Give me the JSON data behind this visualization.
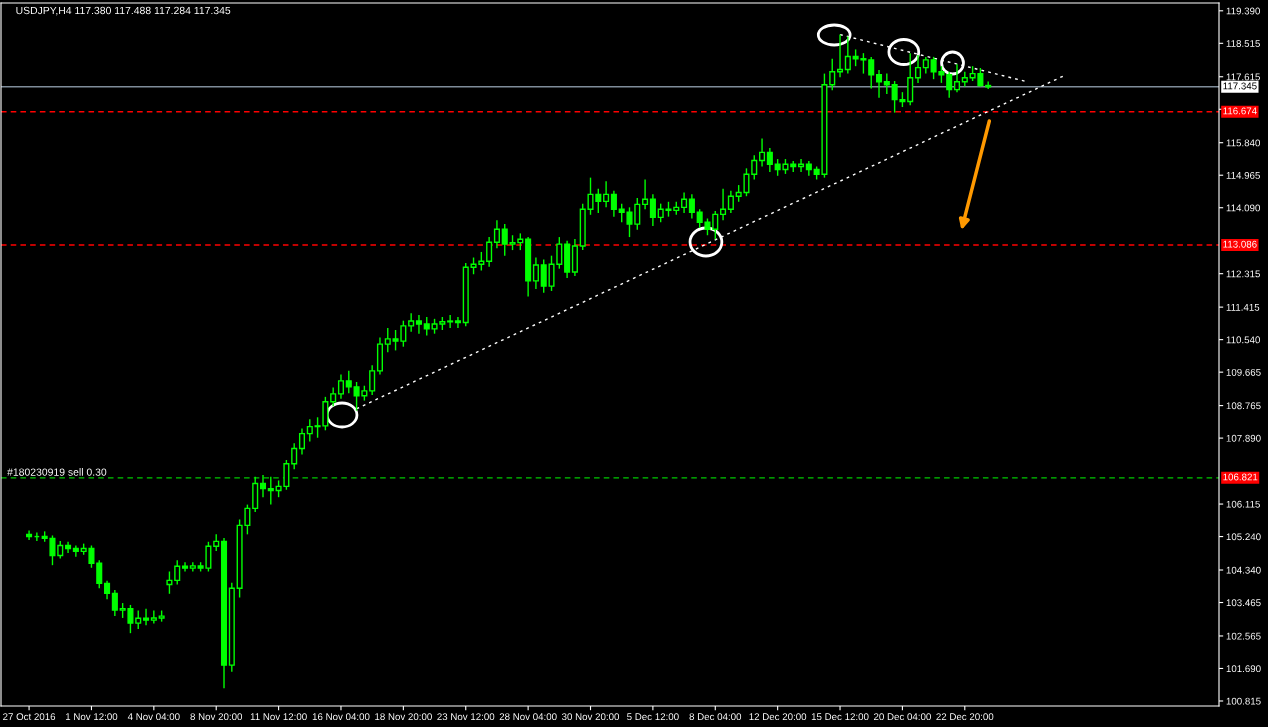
{
  "chart_data": {
    "type": "candlestick",
    "title": "USDJPY,H4 117.380 117.488 117.284 117.345",
    "color": "#00ff00",
    "categories": [
      "27 Oct 2016",
      null,
      null,
      null,
      null,
      null,
      null,
      null,
      "1 Nov 12:00",
      null,
      null,
      null,
      null,
      null,
      null,
      null,
      "4 Nov 04:00",
      null,
      null,
      null,
      null,
      null,
      null,
      null,
      "8 Nov 20:00",
      null,
      null,
      null,
      null,
      null,
      null,
      null,
      "11 Nov 12:00",
      null,
      null,
      null,
      null,
      null,
      null,
      null,
      "16 Nov 04:00",
      null,
      null,
      null,
      null,
      null,
      null,
      null,
      "18 Nov 20:00",
      null,
      null,
      null,
      null,
      null,
      null,
      null,
      "23 Nov 12:00",
      null,
      null,
      null,
      null,
      null,
      null,
      null,
      "28 Nov 04:00",
      null,
      null,
      null,
      null,
      null,
      null,
      null,
      "30 Nov 20:00",
      null,
      null,
      null,
      null,
      null,
      null,
      null,
      "5 Dec 12:00",
      null,
      null,
      null,
      null,
      null,
      null,
      null,
      "8 Dec 04:00",
      null,
      null,
      null,
      null,
      null,
      null,
      null,
      "12 Dec 20:00",
      null,
      null,
      null,
      null,
      null,
      null,
      null,
      "15 Dec 12:00",
      null,
      null,
      null,
      null,
      null,
      null,
      null,
      "20 Dec 04:00",
      null,
      null,
      null,
      null,
      null,
      null,
      null,
      "22 Dec 20:00",
      null,
      null,
      null,
      null,
      null,
      null,
      null,
      null,
      null,
      null,
      null,
      null,
      null,
      null,
      null,
      null,
      null,
      null,
      null,
      null,
      null,
      null,
      null,
      null,
      null,
      null,
      null,
      null,
      null,
      null,
      null,
      null
    ],
    "ohlc": [
      [
        105.3,
        105.4,
        105.15,
        105.24
      ],
      [
        105.24,
        105.35,
        105.12,
        105.24
      ],
      [
        105.24,
        105.38,
        105.1,
        105.19
      ],
      [
        105.19,
        105.27,
        104.47,
        104.73
      ],
      [
        104.73,
        105.12,
        104.65,
        105.0
      ],
      [
        105.0,
        105.1,
        104.8,
        104.92
      ],
      [
        104.92,
        105.0,
        104.7,
        104.84
      ],
      [
        104.84,
        105.05,
        104.75,
        104.92
      ],
      [
        104.92,
        105.0,
        104.4,
        104.52
      ],
      [
        104.52,
        104.6,
        103.85,
        103.98
      ],
      [
        103.98,
        104.05,
        103.55,
        103.71
      ],
      [
        103.71,
        103.8,
        103.1,
        103.26
      ],
      [
        103.26,
        103.45,
        103.05,
        103.3
      ],
      [
        103.3,
        103.4,
        102.64,
        102.91
      ],
      [
        102.91,
        103.25,
        102.75,
        103.04
      ],
      [
        103.04,
        103.3,
        102.85,
        102.99
      ],
      [
        102.99,
        103.25,
        102.9,
        103.05
      ],
      [
        103.05,
        103.25,
        102.95,
        103.1
      ],
      [
        103.95,
        104.3,
        103.7,
        104.06
      ],
      [
        104.06,
        104.6,
        103.95,
        104.44
      ],
      [
        104.44,
        104.55,
        104.3,
        104.39
      ],
      [
        104.39,
        104.55,
        104.3,
        104.45
      ],
      [
        104.45,
        104.55,
        104.3,
        104.39
      ],
      [
        104.39,
        105.1,
        104.3,
        104.98
      ],
      [
        104.98,
        105.3,
        104.85,
        105.11
      ],
      [
        105.11,
        105.2,
        101.16,
        101.78
      ],
      [
        101.78,
        104.0,
        101.6,
        103.85
      ],
      [
        103.85,
        105.7,
        103.6,
        105.54
      ],
      [
        105.54,
        106.1,
        105.3,
        106.0
      ],
      [
        106.0,
        106.85,
        105.9,
        106.67
      ],
      [
        106.67,
        106.9,
        106.3,
        106.53
      ],
      [
        106.53,
        106.85,
        106.1,
        106.48
      ],
      [
        106.48,
        106.75,
        106.3,
        106.59
      ],
      [
        106.59,
        107.3,
        106.5,
        107.2
      ],
      [
        107.2,
        107.75,
        107.05,
        107.61
      ],
      [
        107.61,
        108.15,
        107.45,
        108.01
      ],
      [
        108.01,
        108.4,
        107.8,
        108.2
      ],
      [
        108.2,
        108.45,
        107.9,
        108.22
      ],
      [
        108.22,
        109.0,
        108.1,
        108.87
      ],
      [
        108.87,
        109.25,
        108.75,
        109.08
      ],
      [
        109.08,
        109.6,
        108.95,
        109.43
      ],
      [
        109.43,
        109.7,
        109.1,
        109.27
      ],
      [
        109.27,
        109.4,
        108.63,
        109.03
      ],
      [
        109.03,
        109.3,
        108.9,
        109.16
      ],
      [
        109.16,
        109.85,
        109.05,
        109.7
      ],
      [
        109.7,
        110.6,
        109.6,
        110.42
      ],
      [
        110.42,
        110.85,
        110.2,
        110.56
      ],
      [
        110.56,
        110.8,
        110.25,
        110.5
      ],
      [
        110.5,
        111.05,
        110.35,
        110.91
      ],
      [
        110.91,
        111.25,
        110.75,
        111.04
      ],
      [
        111.04,
        111.2,
        110.7,
        110.96
      ],
      [
        110.96,
        111.15,
        110.65,
        110.83
      ],
      [
        110.83,
        111.1,
        110.7,
        110.96
      ],
      [
        110.96,
        111.15,
        110.8,
        111.02
      ],
      [
        111.02,
        111.2,
        110.85,
        111.04
      ],
      [
        111.04,
        111.15,
        110.85,
        111.0
      ],
      [
        111.0,
        112.6,
        110.9,
        112.49
      ],
      [
        112.49,
        112.75,
        112.3,
        112.57
      ],
      [
        112.57,
        112.9,
        112.4,
        112.65
      ],
      [
        112.65,
        113.3,
        112.5,
        113.16
      ],
      [
        113.16,
        113.75,
        113.0,
        113.51
      ],
      [
        113.51,
        113.65,
        112.8,
        113.11
      ],
      [
        113.11,
        113.35,
        112.95,
        113.15
      ],
      [
        113.15,
        113.4,
        112.95,
        113.24
      ],
      [
        113.24,
        113.3,
        111.7,
        112.12
      ],
      [
        112.12,
        112.75,
        111.9,
        112.55
      ],
      [
        112.55,
        112.7,
        111.8,
        111.98
      ],
      [
        111.98,
        112.8,
        111.85,
        112.57
      ],
      [
        112.57,
        113.3,
        112.45,
        113.11
      ],
      [
        113.11,
        113.2,
        112.2,
        112.36
      ],
      [
        112.36,
        113.25,
        112.25,
        113.06
      ],
      [
        113.06,
        114.2,
        112.95,
        114.05
      ],
      [
        114.05,
        114.9,
        113.9,
        114.45
      ],
      [
        114.45,
        114.6,
        113.95,
        114.26
      ],
      [
        114.26,
        114.8,
        114.1,
        114.45
      ],
      [
        114.45,
        114.55,
        113.85,
        114.05
      ],
      [
        114.05,
        114.2,
        113.7,
        113.97
      ],
      [
        113.97,
        114.1,
        113.3,
        113.65
      ],
      [
        113.65,
        114.35,
        113.5,
        114.18
      ],
      [
        114.18,
        114.85,
        114.05,
        114.32
      ],
      [
        114.32,
        114.45,
        113.6,
        113.83
      ],
      [
        113.83,
        114.2,
        113.7,
        114.05
      ],
      [
        114.05,
        114.25,
        113.85,
        114.02
      ],
      [
        114.02,
        114.25,
        113.9,
        114.1
      ],
      [
        114.1,
        114.5,
        113.95,
        114.32
      ],
      [
        114.32,
        114.45,
        113.8,
        113.97
      ],
      [
        113.97,
        114.05,
        113.55,
        113.7
      ],
      [
        113.7,
        113.8,
        113.35,
        113.51
      ],
      [
        113.51,
        114.0,
        113.24,
        113.91
      ],
      [
        113.91,
        114.6,
        113.75,
        114.05
      ],
      [
        114.05,
        114.55,
        113.95,
        114.4
      ],
      [
        114.4,
        114.7,
        114.25,
        114.5
      ],
      [
        114.5,
        115.15,
        114.4,
        114.99
      ],
      [
        114.99,
        115.5,
        114.85,
        115.36
      ],
      [
        115.36,
        115.95,
        115.2,
        115.58
      ],
      [
        115.58,
        115.7,
        115.05,
        115.26
      ],
      [
        115.26,
        115.4,
        114.95,
        115.12
      ],
      [
        115.12,
        115.4,
        115.0,
        115.26
      ],
      [
        115.26,
        115.35,
        115.05,
        115.2
      ],
      [
        115.2,
        115.4,
        115.05,
        115.26
      ],
      [
        115.26,
        115.35,
        114.95,
        115.12
      ],
      [
        115.12,
        115.2,
        114.85,
        114.99
      ],
      [
        114.99,
        117.7,
        114.9,
        117.4
      ],
      [
        117.4,
        118.1,
        117.25,
        117.75
      ],
      [
        117.75,
        118.75,
        117.6,
        117.81
      ],
      [
        117.81,
        118.7,
        117.7,
        118.16
      ],
      [
        118.16,
        118.35,
        117.9,
        118.1
      ],
      [
        118.1,
        118.25,
        117.7,
        118.07
      ],
      [
        118.07,
        118.15,
        117.3,
        117.67
      ],
      [
        117.67,
        117.8,
        117.05,
        117.48
      ],
      [
        117.48,
        117.7,
        117.15,
        117.4
      ],
      [
        117.4,
        117.5,
        116.65,
        117.0
      ],
      [
        117.0,
        117.2,
        116.8,
        116.95
      ],
      [
        116.95,
        118.25,
        116.85,
        117.59
      ],
      [
        117.59,
        118.2,
        117.45,
        117.86
      ],
      [
        117.86,
        118.15,
        117.7,
        118.07
      ],
      [
        118.07,
        118.15,
        117.55,
        117.75
      ],
      [
        117.75,
        117.9,
        117.45,
        117.67
      ],
      [
        117.67,
        117.75,
        117.05,
        117.27
      ],
      [
        117.27,
        117.95,
        117.2,
        117.48
      ],
      [
        117.48,
        117.75,
        117.35,
        117.59
      ],
      [
        117.59,
        117.9,
        117.5,
        117.7
      ],
      [
        117.7,
        117.85,
        117.35,
        117.38
      ],
      [
        117.38,
        117.488,
        117.284,
        117.345
      ],
      null,
      null,
      null,
      null,
      null,
      null,
      null,
      null,
      null,
      null,
      null,
      null,
      null,
      null,
      null,
      null,
      null,
      null,
      null,
      null,
      null,
      null,
      null,
      null,
      null,
      null,
      null,
      null,
      null
    ],
    "series": [
      {
        "type": "line",
        "color": "#ffffff",
        "line_style": "dotted",
        "values": [
          null,
          null,
          null,
          null,
          null,
          null,
          null,
          null,
          null,
          null,
          null,
          null,
          null,
          null,
          null,
          null,
          null,
          null,
          null,
          null,
          null,
          null,
          null,
          null,
          null,
          null,
          null,
          null,
          null,
          null,
          null,
          null,
          null,
          null,
          null,
          null,
          null,
          null,
          null,
          null,
          null,
          null,
          108.68,
          null,
          null,
          null,
          null,
          null,
          null,
          null,
          null,
          null,
          null,
          null,
          null,
          null,
          null,
          null,
          null,
          null,
          null,
          null,
          null,
          null,
          null,
          null,
          null,
          null,
          null,
          null,
          null,
          null,
          null,
          null,
          null,
          null,
          null,
          null,
          null,
          null,
          null,
          null,
          null,
          null,
          null,
          null,
          null,
          null,
          null,
          null,
          null,
          null,
          null,
          null,
          null,
          null,
          null,
          null,
          null,
          null,
          null,
          null,
          null,
          null,
          null,
          null,
          null,
          null,
          null,
          null,
          null,
          null,
          null,
          null,
          null,
          null,
          null,
          null,
          null,
          null,
          null,
          null,
          null,
          null,
          null,
          null,
          null,
          null,
          null,
          null,
          null,
          null,
          null,
          117.67,
          null,
          null,
          null,
          null,
          null,
          null,
          null,
          null,
          null,
          null,
          null,
          null,
          null,
          null,
          null,
          null,
          null,
          null,
          null
        ]
      },
      {
        "type": "line",
        "color": "#ffffff",
        "line_style": "dotted",
        "values": [
          null,
          null,
          null,
          null,
          null,
          null,
          null,
          null,
          null,
          null,
          null,
          null,
          null,
          null,
          null,
          null,
          null,
          null,
          null,
          null,
          null,
          null,
          null,
          null,
          null,
          null,
          null,
          null,
          null,
          null,
          null,
          null,
          null,
          null,
          null,
          null,
          null,
          null,
          null,
          null,
          null,
          null,
          null,
          null,
          null,
          null,
          null,
          null,
          null,
          null,
          null,
          null,
          null,
          null,
          null,
          null,
          null,
          null,
          null,
          null,
          null,
          null,
          null,
          null,
          null,
          null,
          null,
          null,
          null,
          null,
          null,
          null,
          null,
          null,
          null,
          null,
          null,
          null,
          null,
          null,
          null,
          null,
          null,
          null,
          null,
          null,
          null,
          null,
          null,
          null,
          null,
          null,
          null,
          null,
          null,
          null,
          null,
          null,
          null,
          null,
          null,
          null,
          null,
          null,
          118.75,
          null,
          null,
          null,
          null,
          null,
          null,
          null,
          null,
          null,
          null,
          null,
          null,
          null,
          null,
          null,
          null,
          null,
          null,
          null,
          null,
          null,
          null,
          null,
          117.48,
          null,
          null,
          null,
          null,
          null,
          null,
          null,
          null,
          null,
          null,
          null,
          null,
          null,
          null,
          null,
          null,
          null,
          null,
          null,
          null,
          null,
          null,
          null,
          null
        ]
      }
    ],
    "ref_lines": [
      {
        "axis": "y",
        "value": 117.345,
        "label": "117.345",
        "color": "#7f8c99",
        "line_style": "solid"
      },
      {
        "axis": "y",
        "value": 116.674,
        "label": "116.674",
        "color": "#ff0000",
        "line_style": "dashed"
      },
      {
        "axis": "y",
        "value": 113.086,
        "label": "113.086",
        "color": "#ff0000",
        "line_style": "dashed"
      },
      {
        "axis": "y",
        "value": 106.821,
        "label": "106.821",
        "color": "#00c800",
        "line_style": "dashed"
      }
    ],
    "annotations": [
      {
        "text": "#180230919 sell 0.30",
        "y": 106.821
      }
    ],
    "ylim": [
      100.68,
      119.6
    ],
    "yticks": [
      {
        "value": 119.39,
        "label": "119.390"
      },
      118.515,
      117.615,
      {
        "value": 116.74,
        "label": null
      },
      {
        "value": 115.84,
        "label": "115.840"
      },
      114.965,
      {
        "value": 114.09,
        "label": "114.090"
      },
      112.315,
      111.415,
      {
        "value": 110.54,
        "label": "110.540"
      },
      109.665,
      108.765,
      {
        "value": 107.89,
        "label": "107.890"
      },
      106.115,
      {
        "value": 105.24,
        "label": "105.240"
      },
      {
        "value": 104.34,
        "label": "104.340"
      },
      103.465,
      102.565,
      {
        "value": 101.69,
        "label": "101.690"
      },
      100.815
    ],
    "grid": false,
    "legend": false
  }
}
